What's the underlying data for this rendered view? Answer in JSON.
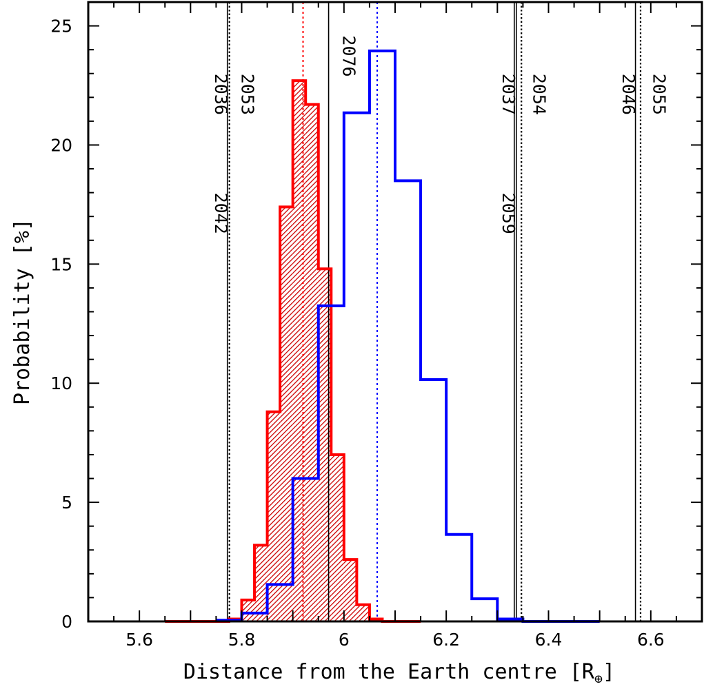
{
  "chart_data": {
    "type": "bar",
    "title": "",
    "xlabel": "Distance from the Earth centre [R",
    "xlabel_subscript": "⊕",
    "xlabel_suffix": "]",
    "ylabel": "Probability [%]",
    "xlim": [
      5.5,
      6.7
    ],
    "ylim": [
      0,
      26
    ],
    "x_ticks": [
      5.6,
      5.8,
      6,
      6.2,
      6.4,
      6.6
    ],
    "x_tick_labels": [
      "5.6",
      "5.8",
      "6",
      "6.2",
      "6.4",
      "6.6"
    ],
    "y_ticks": [
      0,
      5,
      10,
      15,
      20,
      25
    ],
    "y_tick_labels": [
      "0",
      "5",
      "10",
      "15",
      "20",
      "25"
    ],
    "grid": false,
    "series": [
      {
        "color": "#ff0000",
        "style": "hatched-step",
        "bin_edges": [
          5.65,
          5.775,
          5.8,
          5.825,
          5.85,
          5.875,
          5.9,
          5.925,
          5.95,
          5.975,
          6.0,
          6.025,
          6.05,
          6.075,
          6.15
        ],
        "values": [
          0,
          0.1,
          0.9,
          3.2,
          8.8,
          17.4,
          22.7,
          21.7,
          14.8,
          7.0,
          2.6,
          0.7,
          0.1,
          0
        ],
        "mean": 5.92
      },
      {
        "color": "#0000ff",
        "style": "step",
        "bin_edges": [
          5.75,
          5.8,
          5.85,
          5.9,
          5.95,
          6.0,
          6.05,
          6.1,
          6.15,
          6.2,
          6.25,
          6.3,
          6.35,
          6.5
        ],
        "values": [
          0.05,
          0.35,
          1.55,
          6.0,
          13.25,
          21.35,
          23.95,
          18.5,
          10.15,
          3.65,
          0.95,
          0.1,
          0
        ],
        "mean": 6.065
      }
    ],
    "vertical_lines": [
      {
        "x": 5.772,
        "style": "solid"
      },
      {
        "x": 5.776,
        "style": "dotted"
      },
      {
        "x": 5.97,
        "style": "solid"
      },
      {
        "x": 6.333,
        "style": "solid"
      },
      {
        "x": 6.337,
        "style": "solid"
      },
      {
        "x": 6.347,
        "style": "dotted"
      },
      {
        "x": 6.57,
        "style": "solid"
      },
      {
        "x": 6.58,
        "style": "dotted"
      }
    ],
    "annotations": [
      {
        "text": "2036",
        "x": 5.748,
        "y": 23.0
      },
      {
        "text": "2042",
        "x": 5.748,
        "y": 18.0
      },
      {
        "text": "2053",
        "x": 5.8,
        "y": 23.0
      },
      {
        "text": "2076",
        "x": 5.998,
        "y": 24.6
      },
      {
        "text": "2037",
        "x": 6.31,
        "y": 23.0
      },
      {
        "text": "2059",
        "x": 6.31,
        "y": 18.0
      },
      {
        "text": "2054",
        "x": 6.37,
        "y": 23.0
      },
      {
        "text": "2046",
        "x": 6.545,
        "y": 23.0
      },
      {
        "text": "2055",
        "x": 6.605,
        "y": 23.0
      }
    ]
  }
}
